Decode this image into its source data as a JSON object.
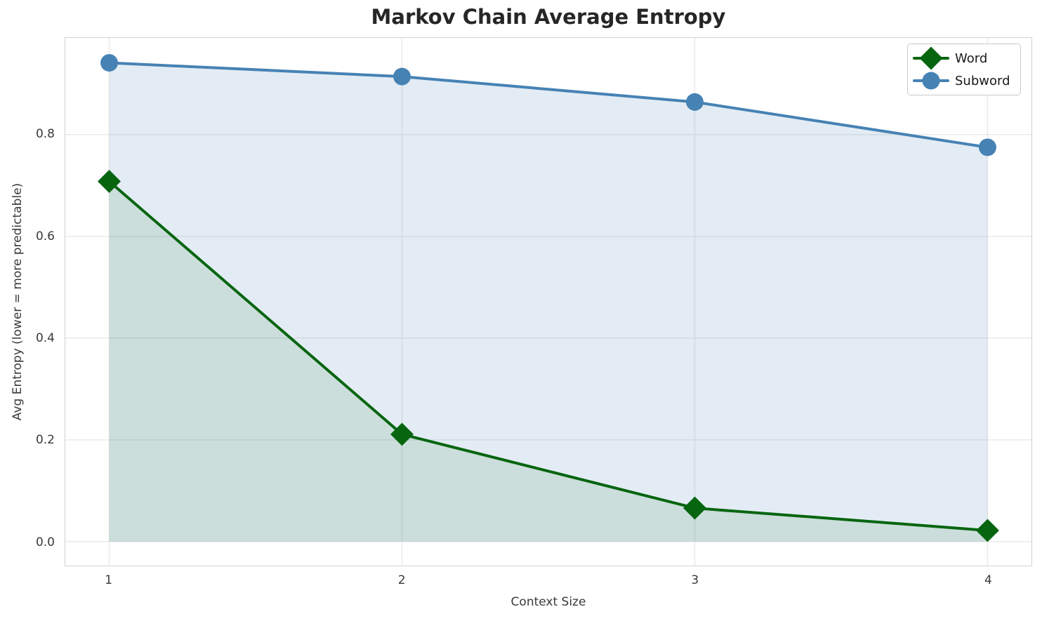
{
  "chart_data": {
    "type": "line",
    "title": "Markov Chain Average Entropy",
    "xlabel": "Context Size",
    "ylabel": "Avg Entropy (lower = more predictable)",
    "x": [
      1,
      2,
      3,
      4
    ],
    "series": [
      {
        "name": "Word",
        "values": [
          0.708,
          0.211,
          0.066,
          0.022
        ],
        "color": "#076510",
        "fill_color": "rgba(0,100,0,0.10)",
        "marker": "diamond"
      },
      {
        "name": "Subword",
        "values": [
          0.941,
          0.914,
          0.864,
          0.775
        ],
        "color": "#4682b4",
        "fill_color": "rgba(70,130,180,0.15)",
        "marker": "circle"
      }
    ],
    "xticks": {
      "values": [
        1,
        2,
        3,
        4
      ],
      "labels": [
        "1",
        "2",
        "3",
        "4"
      ]
    },
    "yticks": {
      "values": [
        0.0,
        0.2,
        0.4,
        0.6,
        0.8
      ],
      "labels": [
        "0.0",
        "0.2",
        "0.4",
        "0.6",
        "0.8"
      ]
    },
    "xlim": [
      0.85,
      4.15
    ],
    "ylim": [
      -0.047,
      0.99
    ],
    "grid": true,
    "legend_position": "upper right",
    "area_fill_baseline": 0
  },
  "legend": {
    "items": [
      {
        "label": "Word",
        "icon": "diamond-marker-icon"
      },
      {
        "label": "Subword",
        "icon": "circle-marker-icon"
      }
    ]
  }
}
